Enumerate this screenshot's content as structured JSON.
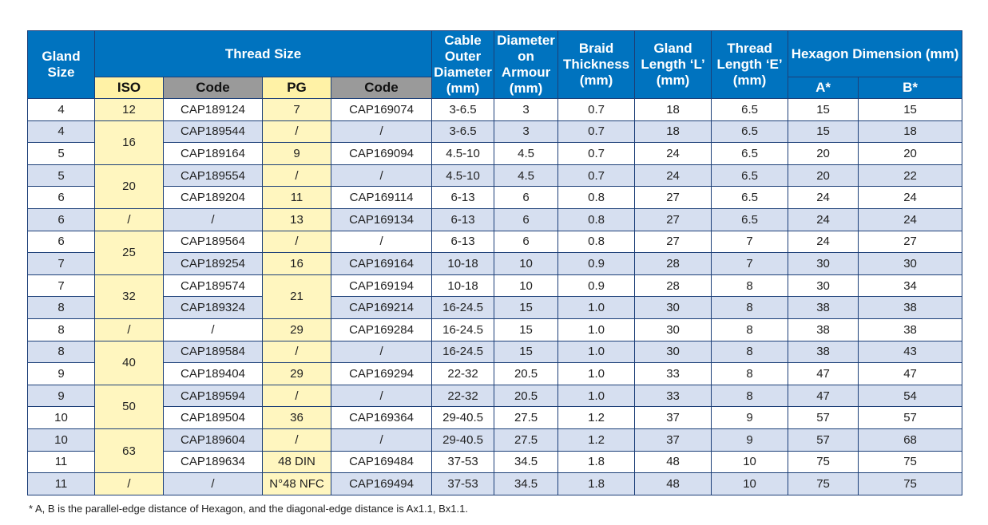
{
  "headers": {
    "gland_size": "Gland Size",
    "thread_size": "Thread Size",
    "cable_outer": "Cable Outer Diameter (mm)",
    "diameter_armour": "Diameter on Armour (mm)",
    "braid": "Braid Thickness (mm)",
    "gland_length": "Gland Length ‘L’ (mm)",
    "thread_length": "Thread Length ‘E’ (mm)",
    "hexagon": "Hexagon Dimension (mm)",
    "iso": "ISO",
    "code1": "Code",
    "pg": "PG",
    "code2": "Code",
    "a": "A*",
    "b": "B*"
  },
  "rows": [
    {
      "gland": "4",
      "iso": "12",
      "code1": "CAP189124",
      "pg": "7",
      "code2": "CAP169074",
      "cable": "3-6.5",
      "armour": "3",
      "braid": "0.7",
      "length": "18",
      "thread": "6.5",
      "a": "15",
      "b": "15"
    },
    {
      "gland": "4",
      "iso": "16",
      "code1": "CAP189544",
      "pg": "/",
      "code2": "/",
      "cable": "3-6.5",
      "armour": "3",
      "braid": "0.7",
      "length": "18",
      "thread": "6.5",
      "a": "15",
      "b": "18"
    },
    {
      "gland": "5",
      "code1": "CAP189164",
      "pg": "9",
      "code2": "CAP169094",
      "cable": "4.5-10",
      "armour": "4.5",
      "braid": "0.7",
      "length": "24",
      "thread": "6.5",
      "a": "20",
      "b": "20"
    },
    {
      "gland": "5",
      "iso": "20",
      "code1": "CAP189554",
      "pg": "/",
      "code2": "/",
      "cable": "4.5-10",
      "armour": "4.5",
      "braid": "0.7",
      "length": "24",
      "thread": "6.5",
      "a": "20",
      "b": "22"
    },
    {
      "gland": "6",
      "code1": "CAP189204",
      "pg": "11",
      "code2": "CAP169114",
      "cable": "6-13",
      "armour": "6",
      "braid": "0.8",
      "length": "27",
      "thread": "6.5",
      "a": "24",
      "b": "24"
    },
    {
      "gland": "6",
      "iso": "/",
      "code1": "/",
      "pg": "13",
      "code2": "CAP169134",
      "cable": "6-13",
      "armour": "6",
      "braid": "0.8",
      "length": "27",
      "thread": "6.5",
      "a": "24",
      "b": "24"
    },
    {
      "gland": "6",
      "iso": "25",
      "code1": "CAP189564",
      "pg": "/",
      "code2": "/",
      "cable": "6-13",
      "armour": "6",
      "braid": "0.8",
      "length": "27",
      "thread": "7",
      "a": "24",
      "b": "27"
    },
    {
      "gland": "7",
      "code1": "CAP189254",
      "pg": "16",
      "code2": "CAP169164",
      "cable": "10-18",
      "armour": "10",
      "braid": "0.9",
      "length": "28",
      "thread": "7",
      "a": "30",
      "b": "30"
    },
    {
      "gland": "7",
      "iso": "32",
      "code1": "CAP189574",
      "pg": "21",
      "code2": "CAP169194",
      "cable": "10-18",
      "armour": "10",
      "braid": "0.9",
      "length": "28",
      "thread": "8",
      "a": "30",
      "b": "34"
    },
    {
      "gland": "8",
      "code1": "CAP189324",
      "code2": "CAP169214",
      "cable": "16-24.5",
      "armour": "15",
      "braid": "1.0",
      "length": "30",
      "thread": "8",
      "a": "38",
      "b": "38"
    },
    {
      "gland": "8",
      "iso": "/",
      "code1": "/",
      "pg": "29",
      "code2": "CAP169284",
      "cable": "16-24.5",
      "armour": "15",
      "braid": "1.0",
      "length": "30",
      "thread": "8",
      "a": "38",
      "b": "38"
    },
    {
      "gland": "8",
      "iso": "40",
      "code1": "CAP189584",
      "pg": "/",
      "code2": "/",
      "cable": "16-24.5",
      "armour": "15",
      "braid": "1.0",
      "length": "30",
      "thread": "8",
      "a": "38",
      "b": "43"
    },
    {
      "gland": "9",
      "code1": "CAP189404",
      "pg": "29",
      "code2": "CAP169294",
      "cable": "22-32",
      "armour": "20.5",
      "braid": "1.0",
      "length": "33",
      "thread": "8",
      "a": "47",
      "b": "47"
    },
    {
      "gland": "9",
      "iso": "50",
      "code1": "CAP189594",
      "pg": "/",
      "code2": "/",
      "cable": "22-32",
      "armour": "20.5",
      "braid": "1.0",
      "length": "33",
      "thread": "8",
      "a": "47",
      "b": "54"
    },
    {
      "gland": "10",
      "code1": "CAP189504",
      "pg": "36",
      "code2": "CAP169364",
      "cable": "29-40.5",
      "armour": "27.5",
      "braid": "1.2",
      "length": "37",
      "thread": "9",
      "a": "57",
      "b": "57"
    },
    {
      "gland": "10",
      "iso": "63",
      "code1": "CAP189604",
      "pg": "/",
      "code2": "/",
      "cable": "29-40.5",
      "armour": "27.5",
      "braid": "1.2",
      "length": "37",
      "thread": "9",
      "a": "57",
      "b": "68"
    },
    {
      "gland": "11",
      "code1": "CAP189634",
      "pg": "48 DIN",
      "code2": "CAP169484",
      "cable": "37-53",
      "armour": "34.5",
      "braid": "1.8",
      "length": "48",
      "thread": "10",
      "a": "75",
      "b": "75"
    },
    {
      "gland": "11",
      "iso": "/",
      "code1": "/",
      "pg": "N°48 NFC",
      "code2": "CAP169494",
      "cable": "37-53",
      "armour": "34.5",
      "braid": "1.8",
      "length": "48",
      "thread": "10",
      "a": "75",
      "b": "75"
    }
  ],
  "footnote": "*  A, B is the parallel-edge distance of Hexagon, and the diagonal-edge distance is Ax1.1, Bx1.1."
}
